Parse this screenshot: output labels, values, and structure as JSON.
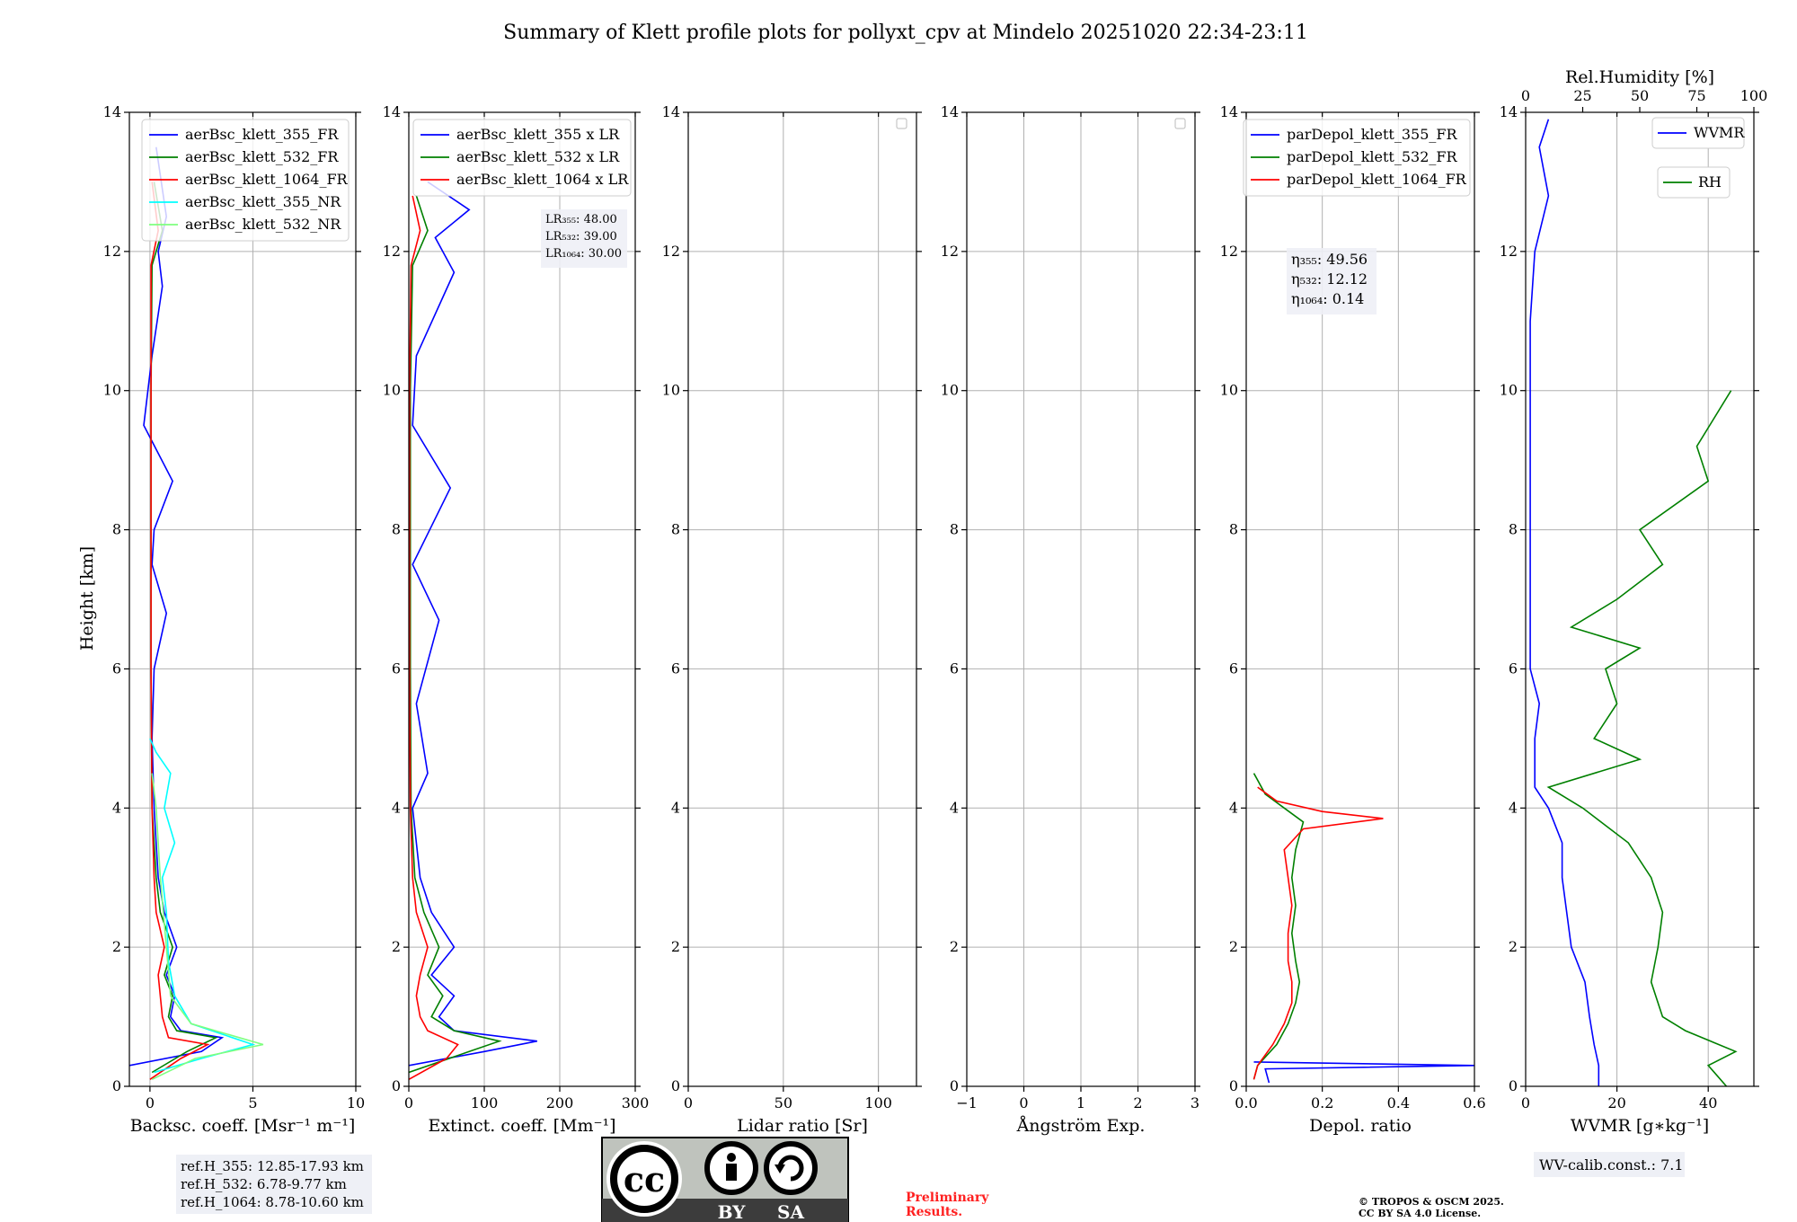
{
  "figure": {
    "title": "Summary of Klett profile plots for pollyxt_cpv at Mindelo 20251020 22:34-23:11",
    "ylabel": "Height [km]",
    "ref_box": [
      "ref.H_355: 12.85-17.93 km",
      "ref.H_532: 6.78-9.77 km",
      "ref.H_1064: 8.78-10.60 km"
    ],
    "preliminary": [
      "Preliminary",
      "Results."
    ],
    "copyright": [
      "© TROPOS & OSCM 2025.",
      "CC BY SA 4.0 License."
    ],
    "wv_calib": "WV-calib.const.: 7.1",
    "license_badge": {
      "by": "BY",
      "sa": "SA",
      "cc": "cc"
    },
    "colors": {
      "b355": "#0000ff",
      "g532": "#008000",
      "r1064": "#ff0000",
      "c355nr": "#00ffff",
      "l532nr": "#7fff7f",
      "rh": "#008000"
    }
  },
  "chart_data": [
    {
      "type": "line",
      "xlabel": "Backsc. coeff. [Msr⁻¹ m⁻¹]",
      "xlim": [
        -1,
        10
      ],
      "ylim": [
        0,
        14
      ],
      "xticks": [
        0,
        5,
        10
      ],
      "xticklabels": [
        "0",
        "5",
        "10"
      ],
      "yticks": [
        0,
        2,
        4,
        6,
        8,
        10,
        12,
        14
      ],
      "legend": [
        "aerBsc_klett_355_FR",
        "aerBsc_klett_532_FR",
        "aerBsc_klett_1064_FR",
        "aerBsc_klett_355_NR",
        "aerBsc_klett_532_NR"
      ],
      "series": [
        {
          "name": "aerBsc_klett_355_FR",
          "color": "#0000ff",
          "y": [
            0.3,
            0.5,
            0.7,
            0.8,
            1.0,
            1.3,
            1.6,
            2.0,
            2.5,
            3.0,
            4.0,
            5.0,
            6.0,
            6.8,
            7.5,
            8.0,
            8.7,
            9.5,
            10.5,
            11.5,
            12.0,
            12.5,
            13.5
          ],
          "x": [
            -1,
            2.5,
            3.5,
            1.5,
            1.0,
            1.2,
            0.8,
            1.3,
            0.7,
            0.4,
            0.2,
            0.1,
            0.2,
            0.8,
            0.1,
            0.2,
            1.1,
            -0.3,
            0.1,
            0.6,
            0.4,
            0.8,
            0.3
          ]
        },
        {
          "name": "aerBsc_klett_532_FR",
          "color": "#008000",
          "y": [
            0.2,
            0.5,
            0.7,
            0.8,
            1.0,
            1.3,
            1.6,
            2.0,
            2.5,
            3.0,
            4.0,
            6.0,
            8.0,
            10.0,
            11.8,
            12.3,
            13.0
          ],
          "x": [
            0.1,
            1.8,
            3.2,
            1.3,
            0.9,
            1.1,
            0.7,
            1.1,
            0.5,
            0.3,
            0.1,
            0.05,
            0.05,
            0.05,
            0.1,
            0.6,
            0.2
          ]
        },
        {
          "name": "aerBsc_klett_1064_FR",
          "color": "#ff0000",
          "y": [
            0.1,
            0.4,
            0.6,
            0.7,
            1.0,
            1.3,
            1.6,
            2.0,
            2.5,
            3.0,
            4.0,
            6.0,
            8.0,
            10.0,
            11.8,
            12.3,
            13.0
          ],
          "x": [
            0.0,
            1.5,
            2.8,
            0.9,
            0.6,
            0.5,
            0.4,
            0.7,
            0.3,
            0.2,
            0.1,
            0.05,
            0.05,
            0.05,
            0.05,
            0.4,
            0.1
          ]
        },
        {
          "name": "aerBsc_klett_355_NR",
          "color": "#00ffff",
          "y": [
            0.2,
            0.4,
            0.6,
            0.9,
            1.3,
            1.8,
            2.5,
            3.0,
            3.5,
            4.0,
            4.5,
            4.8,
            5.0
          ],
          "x": [
            0.2,
            2.5,
            5.0,
            2.0,
            1.2,
            0.9,
            0.8,
            0.6,
            1.2,
            0.7,
            1.0,
            0.3,
            0.0
          ]
        },
        {
          "name": "aerBsc_klett_532_NR",
          "color": "#7fff7f",
          "y": [
            0.1,
            0.4,
            0.6,
            0.9,
            1.3,
            2.0,
            3.0,
            4.0,
            4.5
          ],
          "x": [
            0.1,
            2.2,
            5.5,
            2.0,
            1.0,
            0.8,
            0.5,
            0.3,
            0.1
          ]
        }
      ]
    },
    {
      "type": "line",
      "xlabel": "Extinct. coeff. [Mm⁻¹]",
      "xlim": [
        0,
        300
      ],
      "ylim": [
        0,
        14
      ],
      "xticks": [
        0,
        100,
        200,
        300
      ],
      "xticklabels": [
        "0",
        "100",
        "200",
        "300"
      ],
      "yticks": [
        0,
        2,
        4,
        6,
        8,
        10,
        12,
        14
      ],
      "legend": [
        "aerBsc_klett_355 x LR",
        "aerBsc_klett_532 x LR",
        "aerBsc_klett_1064 x LR"
      ],
      "annotation": [
        "LR₃₅₅: 48.00",
        "LR₅₃₂: 39.00",
        "LR₁₀₆₄: 30.00"
      ],
      "series": [
        {
          "name": "aerBsc_klett_355 x LR",
          "color": "#0000ff",
          "y": [
            0.3,
            0.5,
            0.65,
            0.8,
            1.0,
            1.3,
            1.6,
            2.0,
            2.5,
            3.0,
            4.0,
            4.5,
            5.5,
            6.7,
            7.5,
            8.6,
            9.5,
            10.5,
            11.7,
            12.2,
            12.6,
            13.0
          ],
          "x": [
            0,
            100,
            170,
            60,
            40,
            60,
            30,
            60,
            30,
            15,
            5,
            25,
            10,
            40,
            5,
            55,
            5,
            10,
            60,
            35,
            80,
            25
          ]
        },
        {
          "name": "aerBsc_klett_532 x LR",
          "color": "#008000",
          "y": [
            0.2,
            0.5,
            0.65,
            0.8,
            1.0,
            1.3,
            1.6,
            2.0,
            2.5,
            3.0,
            4.0,
            6.0,
            8.0,
            10.0,
            11.8,
            12.3,
            12.8
          ],
          "x": [
            0,
            80,
            120,
            60,
            30,
            45,
            25,
            40,
            20,
            8,
            3,
            2,
            2,
            2,
            5,
            25,
            10
          ]
        },
        {
          "name": "aerBsc_klett_1064 x LR",
          "color": "#ff0000",
          "y": [
            0.1,
            0.4,
            0.6,
            0.8,
            1.0,
            1.3,
            1.6,
            2.0,
            2.5,
            3.0,
            4.0,
            6.0,
            8.0,
            10.0,
            11.8,
            12.3,
            12.8
          ],
          "x": [
            0,
            50,
            65,
            25,
            15,
            10,
            15,
            25,
            10,
            5,
            2,
            1,
            1,
            1,
            3,
            15,
            5
          ]
        }
      ]
    },
    {
      "type": "line",
      "xlabel": "Lidar ratio [Sr]",
      "xlim": [
        0,
        120
      ],
      "ylim": [
        0,
        14
      ],
      "xticks": [
        0,
        50,
        100
      ],
      "xticklabels": [
        "0",
        "50",
        "100"
      ],
      "yticks": [
        0,
        2,
        4,
        6,
        8,
        10,
        12,
        14
      ],
      "series": []
    },
    {
      "type": "line",
      "xlabel": "Ångström Exp.",
      "xlim": [
        -1,
        3
      ],
      "ylim": [
        0,
        14
      ],
      "xticks": [
        -1,
        0,
        1,
        2,
        3
      ],
      "xticklabels": [
        "−1",
        "0",
        "1",
        "2",
        "3"
      ],
      "yticks": [
        0,
        2,
        4,
        6,
        8,
        10,
        12,
        14
      ],
      "series": []
    },
    {
      "type": "line",
      "xlabel": "Depol. ratio",
      "xlim": [
        0,
        0.6
      ],
      "ylim": [
        0,
        14
      ],
      "xticks": [
        0,
        0.2,
        0.4,
        0.6
      ],
      "xticklabels": [
        "0.0",
        "0.2",
        "0.4",
        "0.6"
      ],
      "yticks": [
        0,
        2,
        4,
        6,
        8,
        10,
        12,
        14
      ],
      "legend": [
        "parDepol_klett_355_FR",
        "parDepol_klett_532_FR",
        "parDepol_klett_1064_FR"
      ],
      "annotation": [
        "η₃₅₅: 49.56",
        "η₅₃₂: 12.12",
        "η₁₀₆₄: 0.14"
      ],
      "series": [
        {
          "name": "parDepol_klett_355_FR",
          "color": "#0000ff",
          "y": [
            0.05,
            0.25,
            0.3,
            0.35
          ],
          "x": [
            0.06,
            0.05,
            0.6,
            0.02
          ]
        },
        {
          "name": "parDepol_klett_532_FR",
          "color": "#008000",
          "y": [
            0.1,
            0.3,
            0.6,
            0.9,
            1.2,
            1.5,
            1.8,
            2.2,
            2.6,
            3.0,
            3.4,
            3.8,
            4.0,
            4.2,
            4.5
          ],
          "x": [
            0.02,
            0.03,
            0.08,
            0.11,
            0.13,
            0.14,
            0.13,
            0.12,
            0.13,
            0.12,
            0.13,
            0.15,
            0.1,
            0.05,
            0.02
          ]
        },
        {
          "name": "parDepol_klett_1064_FR",
          "color": "#ff0000",
          "y": [
            0.1,
            0.3,
            0.6,
            0.9,
            1.2,
            1.5,
            1.8,
            2.2,
            2.6,
            3.0,
            3.4,
            3.7,
            3.85,
            3.95,
            4.1,
            4.3
          ],
          "x": [
            0.02,
            0.03,
            0.07,
            0.1,
            0.12,
            0.12,
            0.11,
            0.11,
            0.12,
            0.11,
            0.1,
            0.15,
            0.36,
            0.2,
            0.08,
            0.03
          ]
        }
      ]
    },
    {
      "type": "line",
      "xlabel": "WVMR [g∗kg⁻¹]",
      "xlabel_top": "Rel.Humidity [%]",
      "xlim": [
        0,
        50
      ],
      "ylim": [
        0,
        14
      ],
      "xticks": [
        0,
        20,
        40
      ],
      "xticklabels": [
        "0",
        "20",
        "40"
      ],
      "xlim_top": [
        0,
        100
      ],
      "xticks_top": [
        0,
        25,
        50,
        75,
        100
      ],
      "xticklabels_top": [
        "0",
        "25",
        "50",
        "75",
        "100"
      ],
      "yticks": [
        0,
        2,
        4,
        6,
        8,
        10,
        12,
        14
      ],
      "legend": [
        "WVMR",
        "RH"
      ],
      "series": [
        {
          "name": "WVMR",
          "color": "#0000ff",
          "y": [
            0.0,
            0.3,
            0.6,
            1.0,
            1.5,
            2.0,
            2.5,
            3.0,
            3.5,
            4.0,
            4.3,
            5.0,
            5.5,
            6.0,
            6.5,
            7.0,
            8.0,
            9.0,
            10.0,
            11.0,
            12.0,
            12.8,
            13.5,
            13.9
          ],
          "x": [
            16,
            16,
            15,
            14,
            13,
            10,
            9,
            8,
            8,
            5,
            2,
            2,
            3,
            1,
            1,
            1,
            1,
            1,
            1,
            1,
            2,
            5,
            3,
            5
          ]
        },
        {
          "name": "RH",
          "color": "#008000",
          "y": [
            0.0,
            0.3,
            0.5,
            0.8,
            1.0,
            1.5,
            2.0,
            2.5,
            3.0,
            3.5,
            4.0,
            4.3,
            4.7,
            5.0,
            5.5,
            6.0,
            6.3,
            6.6,
            7.0,
            7.5,
            8.0,
            8.7,
            9.2,
            10.0
          ],
          "x": [
            88,
            80,
            92,
            70,
            60,
            55,
            58,
            60,
            55,
            45,
            25,
            10,
            50,
            30,
            40,
            35,
            50,
            20,
            40,
            60,
            50,
            80,
            75,
            90
          ]
        }
      ]
    }
  ]
}
